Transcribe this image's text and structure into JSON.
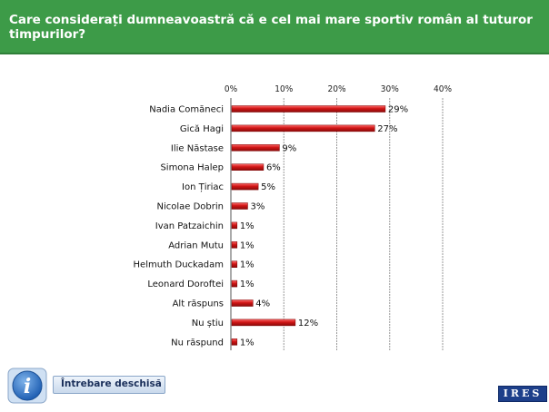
{
  "header": {
    "title": "Care considerați dumneavoastră că e cel mai mare sportiv român al tuturor timpurilor?"
  },
  "footer": {
    "open_question_label": "Întrebare deschisă",
    "logo_text": "IRES"
  },
  "colors": {
    "header_bg": "#3d9b48",
    "bar": "#d01515",
    "grid": "#9a9a9a"
  },
  "chart_data": {
    "type": "bar",
    "orientation": "horizontal",
    "title": "",
    "xlabel": "",
    "ylabel": "",
    "xlim": [
      0,
      40
    ],
    "ticks": [
      "0%",
      "10%",
      "20%",
      "30%",
      "40%"
    ],
    "categories": [
      "Nadia Comăneci",
      "Gică Hagi",
      "Ilie Năstase",
      "Simona Halep",
      "Ion Țiriac",
      "Nicolae Dobrin",
      "Ivan Patzaichin",
      "Adrian Mutu",
      "Helmuth Duckadam",
      "Leonard Doroftei",
      "Alt răspuns",
      "Nu știu",
      "Nu răspund"
    ],
    "values": [
      29,
      27,
      9,
      6,
      5,
      3,
      1,
      1,
      1,
      1,
      4,
      12,
      1
    ],
    "value_labels": [
      "29%",
      "27%",
      "9%",
      "6%",
      "5%",
      "3%",
      "1%",
      "1%",
      "1%",
      "1%",
      "4%",
      "12%",
      "1%"
    ],
    "grid": true
  }
}
